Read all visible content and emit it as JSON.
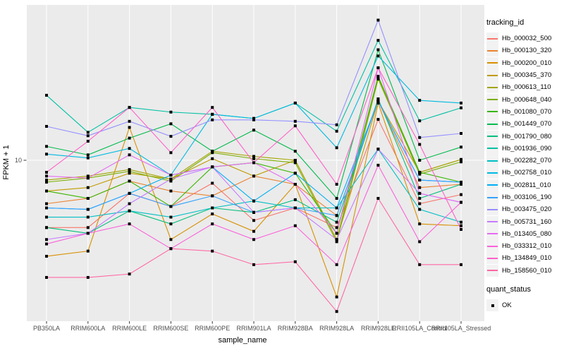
{
  "figure": {
    "x_axis_title": "sample_name",
    "y_axis_title": "FPKM + 1",
    "y_tick_label": "10"
  },
  "legend": {
    "tracking_title": "tracking_id",
    "quant_title": "quant_status",
    "quant_ok_label": "OK"
  },
  "colors": {
    "panel_bg": "#EBEBEB",
    "grid": "#FFFFFF",
    "point": "#000000",
    "axis_text": "#4D4D4D",
    "tick_mark": "#333333",
    "legend_key_bg": "#F2F2F2"
  },
  "chart_data": {
    "type": "line",
    "title": "",
    "xlabel": "sample_name",
    "ylabel": "FPKM + 1",
    "y_scale": "log10",
    "y_ticks": [
      10
    ],
    "grid": "major",
    "legend_position": "right",
    "point_marker": "filled-square",
    "point_status_label": "OK",
    "categories": [
      "PB350LA",
      "RRIM600LA",
      "RRIM600LE",
      "RRIM600SE",
      "RRIM600PE",
      "RRIM901LA",
      "RRIM928BA",
      "RRIM928LA",
      "RRIM928LE",
      "RRII105LA_Control",
      "RRII105LA_Stressed"
    ],
    "series": [
      {
        "name": "Hb_000032_500",
        "color": "#F8766D",
        "values": [
          4.3,
          4.3,
          6.6,
          5.6,
          7.5,
          4.7,
          5.5,
          4.3,
          16.7,
          5.8,
          6.5
        ]
      },
      {
        "name": "Hb_000130_320",
        "color": "#EA8331",
        "values": [
          5.8,
          6.2,
          7.7,
          6.8,
          6.4,
          8.2,
          7.4,
          5.0,
          21.0,
          7.1,
          7.4
        ]
      },
      {
        "name": "Hb_000200_010",
        "color": "#D89000",
        "values": [
          3.0,
          3.2,
          15.1,
          3.7,
          5.1,
          4.1,
          7.4,
          1.8,
          20.5,
          4.5,
          4.4
        ]
      },
      {
        "name": "Hb_000345_370",
        "color": "#C09B00",
        "values": [
          6.8,
          7.1,
          8.5,
          7.9,
          10.2,
          8.2,
          10.0,
          3.7,
          21.0,
          8.6,
          10.1
        ]
      },
      {
        "name": "Hb_000613_110",
        "color": "#A3A500",
        "values": [
          7.8,
          8.2,
          8.9,
          7.9,
          11.2,
          10.5,
          10.0,
          3.7,
          28.2,
          8.6,
          10.1
        ]
      },
      {
        "name": "Hb_000648_040",
        "color": "#7CAE00",
        "values": [
          7.6,
          8.0,
          8.7,
          7.7,
          11.0,
          10.2,
          9.7,
          3.6,
          27.7,
          8.4,
          9.8
        ]
      },
      {
        "name": "Hb_001080_070",
        "color": "#39B600",
        "values": [
          6.8,
          6.2,
          7.7,
          5.6,
          9.2,
          9.7,
          8.5,
          4.0,
          28.7,
          8.6,
          7.6
        ]
      },
      {
        "name": "Hb_001449_070",
        "color": "#00BB4E",
        "values": [
          11.9,
          10.7,
          13.2,
          15.8,
          11.2,
          14.6,
          11.2,
          6.2,
          40.0,
          10.0,
          11.8
        ]
      },
      {
        "name": "Hb_001790_080",
        "color": "#00BF7D",
        "values": [
          4.3,
          4.0,
          5.3,
          4.5,
          5.5,
          5.2,
          6.1,
          4.6,
          21.6,
          6.2,
          7.4
        ]
      },
      {
        "name": "Hb_001936_090",
        "color": "#00C1A3",
        "values": [
          22.6,
          14.2,
          19.4,
          18.3,
          17.8,
          16.9,
          20.5,
          14.4,
          45.0,
          16.4,
          19.3
        ]
      },
      {
        "name": "Hb_002282_070",
        "color": "#00BFC4",
        "values": [
          4.9,
          4.9,
          5.3,
          4.9,
          5.5,
          6.0,
          5.5,
          5.5,
          11.5,
          5.4,
          4.6
        ]
      },
      {
        "name": "Hb_002758_010",
        "color": "#00BAE0",
        "values": [
          10.8,
          10.3,
          11.6,
          8.3,
          17.8,
          16.9,
          20.5,
          11.7,
          37.0,
          21.2,
          20.5
        ]
      },
      {
        "name": "Hb_002811_010",
        "color": "#00B0F6",
        "values": [
          5.5,
          5.4,
          6.6,
          8.3,
          9.2,
          6.0,
          8.5,
          5.5,
          21.0,
          7.8,
          7.6
        ]
      },
      {
        "name": "Hb_003106_190",
        "color": "#35A2FF",
        "values": [
          5.5,
          5.4,
          6.6,
          5.6,
          6.4,
          5.2,
          5.5,
          5.0,
          21.0,
          7.8,
          7.6
        ]
      },
      {
        "name": "Hb_003475_020",
        "color": "#9590FF",
        "values": [
          15.3,
          13.6,
          16.3,
          13.5,
          16.6,
          16.6,
          16.3,
          15.6,
          58.0,
          13.3,
          14.0
        ]
      },
      {
        "name": "Hb_005731_160",
        "color": "#C77CFF",
        "values": [
          3.7,
          4.0,
          5.8,
          7.9,
          9.2,
          5.2,
          5.5,
          3.7,
          11.5,
          6.6,
          5.9
        ]
      },
      {
        "name": "Hb_013405_080",
        "color": "#E76BF3",
        "values": [
          8.2,
          8.0,
          10.7,
          8.3,
          9.2,
          9.7,
          7.4,
          4.0,
          31.9,
          6.6,
          5.9
        ]
      },
      {
        "name": "Hb_033312_010",
        "color": "#FA62DB",
        "values": [
          3.5,
          4.0,
          4.5,
          3.3,
          4.5,
          3.7,
          4.4,
          2.7,
          9.4,
          3.6,
          5.9
        ]
      },
      {
        "name": "Hb_134849_010",
        "color": "#FF61C9",
        "values": [
          8.6,
          12.7,
          19.4,
          11.0,
          19.4,
          9.7,
          15.4,
          7.4,
          31.9,
          12.2,
          4.2
        ]
      },
      {
        "name": "Hb_158560_010",
        "color": "#FF67A4",
        "values": [
          2.3,
          2.3,
          2.4,
          3.3,
          3.2,
          2.7,
          2.8,
          1.5,
          6.2,
          2.7,
          2.7
        ]
      }
    ]
  }
}
